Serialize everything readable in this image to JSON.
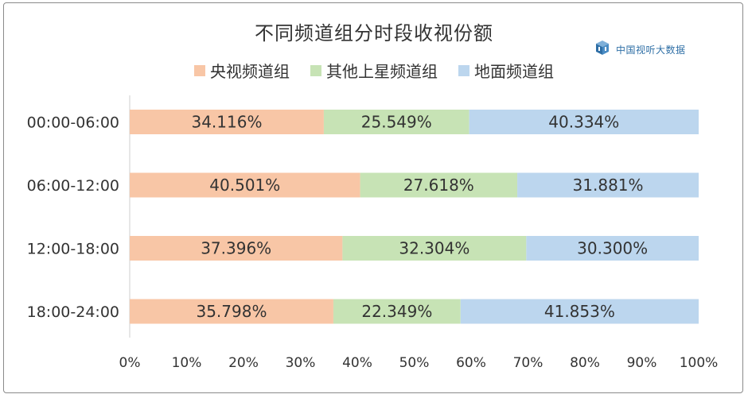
{
  "brand": {
    "text": "中国视听大数据",
    "icon": "cube-logo-icon"
  },
  "colors": {
    "series": [
      "#f8c6a6",
      "#c7e3b5",
      "#bcd6ee"
    ],
    "axis": "#cfcfcf",
    "text": "#333333"
  },
  "chart_data": {
    "type": "bar",
    "orientation": "horizontal",
    "stacked": true,
    "percent_stacked": true,
    "title": "不同频道组分时段收视份额",
    "categories": [
      "00:00-06:00",
      "06:00-12:00",
      "12:00-18:00",
      "18:00-24:00"
    ],
    "series": [
      {
        "name": "央视频道组",
        "values": [
          34.116,
          40.501,
          37.396,
          35.798
        ],
        "labels": [
          "34.116%",
          "40.501%",
          "37.396%",
          "35.798%"
        ]
      },
      {
        "name": "其他上星频道组",
        "values": [
          25.549,
          27.618,
          32.304,
          22.349
        ],
        "labels": [
          "25.549%",
          "27.618%",
          "32.304%",
          "22.349%"
        ]
      },
      {
        "name": "地面频道组",
        "values": [
          40.334,
          31.881,
          30.3,
          41.853
        ],
        "labels": [
          "40.334%",
          "31.881%",
          "30.300%",
          "41.853%"
        ]
      }
    ],
    "xlim": [
      0,
      100
    ],
    "xticks": [
      "0%",
      "10%",
      "20%",
      "30%",
      "40%",
      "50%",
      "60%",
      "70%",
      "80%",
      "90%",
      "100%"
    ],
    "legend_position": "top",
    "grid": false
  }
}
